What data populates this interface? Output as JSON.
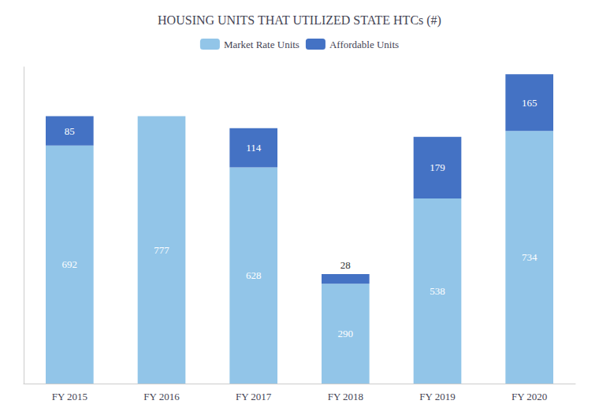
{
  "chart_data": {
    "type": "bar",
    "title": "HOUSING UNITS THAT UTILIZED STATE HTCs (#)",
    "categories": [
      "FY 2015",
      "FY 2016",
      "FY 2017",
      "FY 2018",
      "FY 2019",
      "FY 2020"
    ],
    "series": [
      {
        "name": "Market Rate Units",
        "color": "#92C5E8",
        "values": [
          692,
          777,
          628,
          290,
          538,
          734
        ]
      },
      {
        "name": "Affordable Units",
        "color": "#4472C4",
        "values": [
          85,
          0,
          114,
          28,
          179,
          165
        ]
      }
    ],
    "stacked": true,
    "data_labels": true,
    "ylim": [
      0,
      920
    ],
    "yticks": [],
    "tick_labels": "x",
    "grid": false,
    "legend": "top"
  }
}
